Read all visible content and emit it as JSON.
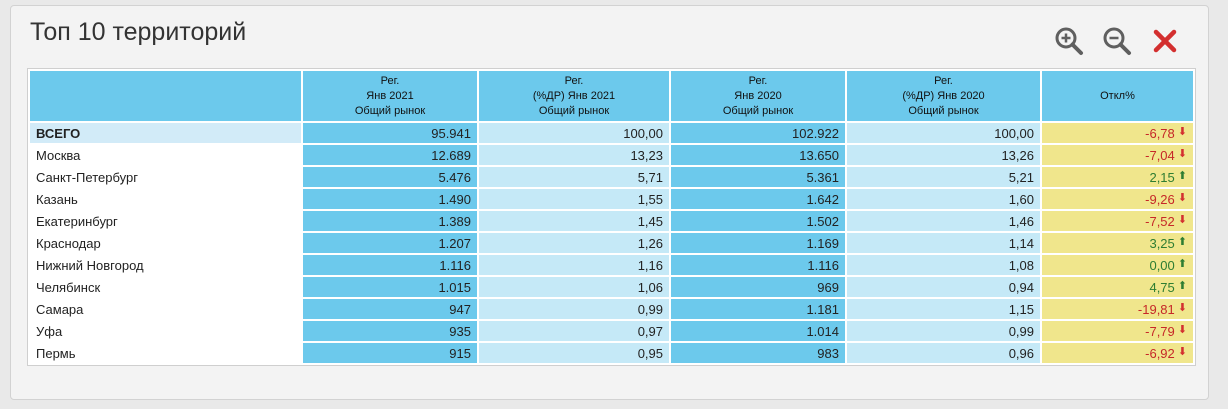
{
  "panel": {
    "title": "Топ 10 территорий",
    "tools": [
      {
        "name": "zoom-in-icon",
        "icon": "magnifier-plus",
        "color": "#5f5f5f"
      },
      {
        "name": "zoom-out-icon",
        "icon": "magnifier-minus",
        "color": "#5f5f5f"
      },
      {
        "name": "close-icon",
        "icon": "cross",
        "color": "#d32f2f"
      }
    ]
  },
  "table": {
    "headers": [
      [
        "",
        "",
        ""
      ],
      [
        "Рег.",
        "Янв 2021",
        "Общий рынок"
      ],
      [
        "Рег.",
        "(%ДР) Янв 2021",
        "Общий рынок"
      ],
      [
        "Рег.",
        "Янв 2020",
        "Общий рынок"
      ],
      [
        "Рег.",
        "(%ДР) Янв 2020",
        "Общий рынок"
      ],
      [
        "Откл%",
        "",
        ""
      ]
    ],
    "rows": [
      {
        "name": "ВСЕГО",
        "v2021": "95.941",
        "p2021": "100,00",
        "v2020": "102.922",
        "p2020": "100,00",
        "dev": "-6,78",
        "dir": "down"
      },
      {
        "name": "Москва",
        "v2021": "12.689",
        "p2021": "13,23",
        "v2020": "13.650",
        "p2020": "13,26",
        "dev": "-7,04",
        "dir": "down"
      },
      {
        "name": "Санкт-Петербург",
        "v2021": "5.476",
        "p2021": "5,71",
        "v2020": "5.361",
        "p2020": "5,21",
        "dev": "2,15",
        "dir": "up"
      },
      {
        "name": "Казань",
        "v2021": "1.490",
        "p2021": "1,55",
        "v2020": "1.642",
        "p2020": "1,60",
        "dev": "-9,26",
        "dir": "down"
      },
      {
        "name": "Екатеринбург",
        "v2021": "1.389",
        "p2021": "1,45",
        "v2020": "1.502",
        "p2020": "1,46",
        "dev": "-7,52",
        "dir": "down"
      },
      {
        "name": "Краснодар",
        "v2021": "1.207",
        "p2021": "1,26",
        "v2020": "1.169",
        "p2020": "1,14",
        "dev": "3,25",
        "dir": "up"
      },
      {
        "name": "Нижний Новгород",
        "v2021": "1.116",
        "p2021": "1,16",
        "v2020": "1.116",
        "p2020": "1,08",
        "dev": "0,00",
        "dir": "up"
      },
      {
        "name": "Челябинск",
        "v2021": "1.015",
        "p2021": "1,06",
        "v2020": "969",
        "p2020": "0,94",
        "dev": "4,75",
        "dir": "up"
      },
      {
        "name": "Самара",
        "v2021": "947",
        "p2021": "0,99",
        "v2020": "1.181",
        "p2020": "1,15",
        "dev": "-19,81",
        "dir": "down"
      },
      {
        "name": "Уфа",
        "v2021": "935",
        "p2021": "0,97",
        "v2020": "1.014",
        "p2020": "0,99",
        "dev": "-7,79",
        "dir": "down"
      },
      {
        "name": "Пермь",
        "v2021": "915",
        "p2021": "0,95",
        "v2020": "983",
        "p2020": "0,96",
        "dev": "-6,92",
        "dir": "down"
      }
    ]
  }
}
